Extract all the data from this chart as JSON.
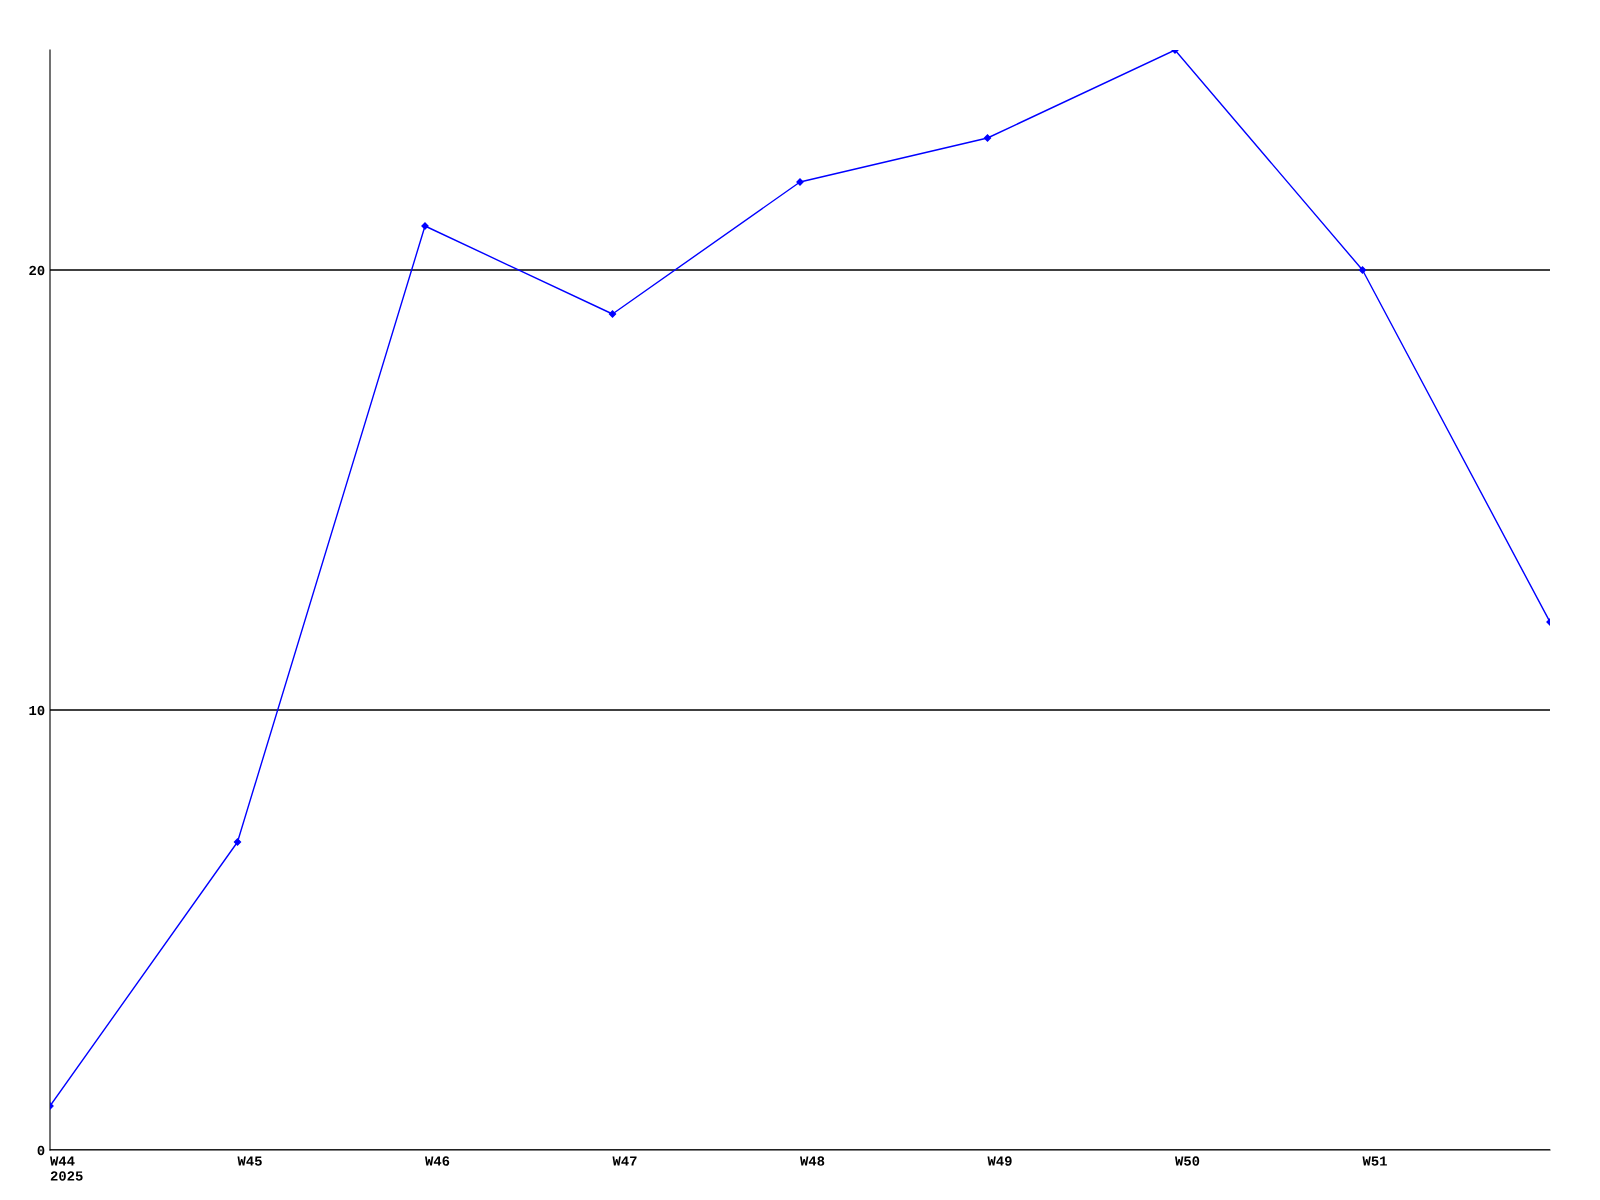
{
  "chart_data": {
    "type": "line",
    "categories": [
      "W44\n2025",
      "W45",
      "W46",
      "W47",
      "W48",
      "W49",
      "W50",
      "W51",
      null
    ],
    "series": [
      {
        "color": "#0000ff",
        "values": [
          1,
          7,
          21,
          19,
          22,
          23,
          25,
          20,
          12
        ]
      }
    ],
    "ylim": [
      0,
      25
    ],
    "yticks": [
      0,
      10,
      20
    ],
    "grid": "y",
    "marker": "diamond",
    "line_style": "solid",
    "legend": false
  }
}
